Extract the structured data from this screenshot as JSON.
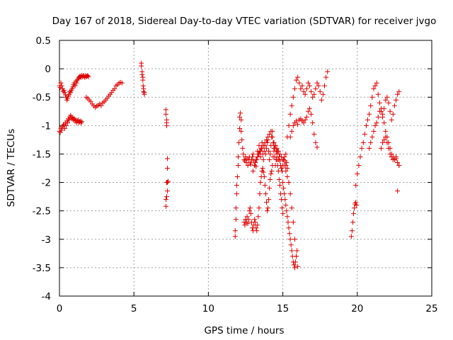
{
  "chart_data": {
    "type": "scatter",
    "title": "Day 167 of 2018, Sidereal Day-to-day VTEC variation (SDTVAR) for receiver jvgo",
    "xlabel": "GPS time / hours",
    "ylabel": "SDTVAR / TECUs",
    "xlim": [
      0,
      25
    ],
    "ylim": [
      -4,
      0.5
    ],
    "xticks": [
      0,
      5,
      10,
      15,
      20,
      25
    ],
    "yticks": [
      0.5,
      0,
      -0.5,
      -1,
      -1.5,
      -2,
      -2.5,
      -3,
      -3.5,
      -4
    ],
    "xtick_labels": [
      "0",
      "5",
      "10",
      "15",
      "20",
      "25"
    ],
    "ytick_labels": [
      "0.5",
      "0",
      "-0.5",
      "-1",
      "-1.5",
      "-2",
      "-2.5",
      "-3",
      "-3.5",
      "-4"
    ],
    "grid": true,
    "marker": "+",
    "color": "#e00000",
    "series": [
      {
        "name": "SDTVAR",
        "x": [
          0.0,
          0.05,
          0.1,
          0.15,
          0.2,
          0.25,
          0.3,
          0.35,
          0.4,
          0.45,
          0.5,
          0.55,
          0.6,
          0.65,
          0.7,
          0.75,
          0.8,
          0.85,
          0.9,
          0.95,
          1.0,
          1.05,
          1.1,
          1.15,
          1.2,
          1.25,
          1.3,
          1.35,
          1.4,
          1.45,
          1.5,
          1.55,
          1.6,
          1.65,
          1.7,
          1.75,
          1.8,
          1.85,
          1.9,
          1.95,
          0.0,
          0.05,
          0.1,
          0.15,
          0.2,
          0.25,
          0.3,
          0.35,
          0.4,
          0.45,
          0.5,
          0.55,
          0.6,
          0.65,
          0.7,
          0.75,
          0.8,
          0.85,
          0.9,
          0.95,
          1.0,
          1.05,
          1.1,
          1.15,
          1.2,
          1.25,
          1.3,
          1.35,
          1.4,
          1.45,
          1.5,
          1.8,
          1.9,
          2.0,
          2.1,
          2.2,
          2.3,
          2.4,
          2.5,
          2.6,
          2.7,
          2.8,
          2.9,
          3.0,
          3.1,
          3.2,
          3.3,
          3.4,
          3.5,
          3.6,
          3.7,
          3.8,
          3.9,
          4.0,
          4.1,
          4.2,
          5.5,
          5.5,
          5.55,
          5.55,
          5.6,
          5.6,
          5.62,
          5.65,
          5.65,
          5.7,
          5.7,
          7.15,
          7.15,
          7.2,
          7.2,
          7.2,
          7.25,
          7.25,
          7.3,
          7.2,
          7.25,
          7.2,
          7.15,
          7.15,
          7.25,
          11.8,
          11.8,
          11.85,
          11.85,
          11.9,
          11.9,
          11.95,
          12.0,
          12.0,
          12.05,
          12.1,
          12.1,
          12.15,
          12.2,
          12.2,
          12.25,
          12.3,
          12.35,
          12.4,
          12.45,
          12.5,
          12.55,
          12.6,
          12.65,
          12.7,
          12.75,
          12.8,
          12.85,
          12.9,
          12.95,
          13.0,
          13.05,
          13.1,
          13.15,
          13.2,
          13.25,
          13.3,
          13.35,
          13.4,
          13.45,
          13.5,
          13.55,
          13.6,
          13.65,
          13.7,
          13.75,
          13.8,
          13.85,
          13.9,
          13.95,
          14.0,
          14.05,
          14.1,
          14.15,
          14.2,
          14.25,
          14.3,
          14.35,
          14.4,
          14.45,
          14.5,
          14.55,
          14.6,
          14.65,
          14.7,
          14.75,
          14.8,
          14.85,
          14.9,
          14.95,
          15.0,
          15.05,
          15.1,
          15.15,
          15.2,
          15.25,
          15.3,
          12.4,
          12.45,
          12.5,
          12.55,
          12.6,
          12.65,
          12.7,
          12.75,
          12.8,
          12.85,
          12.9,
          12.95,
          13.0,
          13.05,
          13.1,
          13.15,
          13.2,
          13.25,
          13.3,
          13.35,
          13.4,
          13.45,
          13.5,
          13.55,
          13.6,
          13.65,
          13.7,
          13.75,
          13.8,
          13.85,
          13.9,
          13.95,
          14.0,
          14.05,
          14.1,
          14.15,
          14.2,
          14.25,
          14.3,
          14.35,
          14.4,
          14.45,
          14.5,
          14.55,
          14.6,
          14.65,
          14.7,
          14.75,
          14.8,
          14.85,
          14.9,
          14.95,
          15.0,
          13.0,
          13.1,
          13.2,
          13.3,
          13.4,
          13.5,
          13.6,
          13.7,
          13.8,
          13.9,
          14.0,
          14.1,
          14.2,
          14.3,
          14.4,
          14.5,
          14.6,
          14.7,
          14.8,
          14.9,
          15.0,
          15.1,
          15.2,
          15.3,
          15.4,
          15.5,
          15.6,
          15.7,
          15.8,
          15.9,
          16.0,
          15.0,
          15.05,
          15.1,
          15.15,
          15.2,
          15.25,
          15.3,
          15.35,
          15.4,
          15.45,
          15.5,
          15.55,
          15.6,
          15.65,
          15.7,
          15.75,
          15.8,
          15.85,
          15.9,
          15.95,
          15.2,
          15.3,
          15.4,
          15.5,
          15.6,
          15.7,
          15.8,
          15.9,
          16.0,
          16.1,
          16.2,
          16.3,
          16.4,
          16.5,
          16.6,
          16.7,
          16.8,
          16.9,
          17.0,
          17.1,
          17.2,
          17.3,
          17.4,
          17.5,
          17.6,
          17.7,
          17.8,
          17.9,
          18.0,
          15.5,
          15.6,
          15.7,
          15.8,
          15.9,
          16.0,
          16.1,
          16.2,
          16.3,
          16.4,
          16.5,
          16.6,
          16.7,
          16.8,
          16.9,
          17.0,
          17.1,
          17.2,
          17.3,
          19.6,
          19.65,
          19.7,
          19.75,
          19.8,
          19.85,
          19.9,
          19.95,
          19.9,
          20.0,
          20.1,
          20.2,
          20.3,
          20.4,
          20.5,
          20.6,
          20.7,
          20.8,
          20.9,
          21.0,
          21.1,
          21.2,
          21.3,
          21.4,
          21.5,
          21.6,
          21.7,
          21.8,
          21.9,
          22.0,
          22.1,
          22.2,
          22.3,
          22.4,
          22.5,
          22.6,
          22.7,
          22.8,
          20.8,
          20.9,
          21.0,
          21.1,
          21.2,
          21.3,
          21.4,
          21.5,
          21.6,
          21.7,
          21.8,
          21.9,
          22.0,
          22.1,
          22.2,
          22.3,
          22.4,
          22.5,
          22.6,
          22.7,
          22.8,
          21.6,
          21.7,
          21.8,
          21.9,
          22.0,
          22.1,
          22.2,
          22.3,
          22.4,
          22.5,
          22.6,
          22.7,
          22.8,
          22.7
        ],
        "y": [
          -0.3,
          -0.33,
          -0.25,
          -0.3,
          -0.35,
          -0.4,
          -0.38,
          -0.42,
          -0.46,
          -0.5,
          -0.55,
          -0.52,
          -0.48,
          -0.45,
          -0.4,
          -0.42,
          -0.38,
          -0.35,
          -0.32,
          -0.28,
          -0.25,
          -0.3,
          -0.22,
          -0.25,
          -0.2,
          -0.18,
          -0.15,
          -0.14,
          -0.13,
          -0.15,
          -0.12,
          -0.14,
          -0.12,
          -0.13,
          -0.15,
          -0.12,
          -0.14,
          -0.13,
          -0.12,
          -0.14,
          -1.1,
          -1.12,
          -1.05,
          -1.08,
          -1.02,
          -1.0,
          -0.98,
          -1.05,
          -0.95,
          -1.0,
          -0.92,
          -0.95,
          -0.88,
          -0.9,
          -0.85,
          -0.82,
          -0.85,
          -0.88,
          -0.86,
          -0.9,
          -0.88,
          -0.92,
          -0.9,
          -0.95,
          -0.92,
          -0.9,
          -0.95,
          -0.93,
          -0.92,
          -0.95,
          -0.93,
          -0.5,
          -0.52,
          -0.55,
          -0.58,
          -0.62,
          -0.65,
          -0.68,
          -0.66,
          -0.64,
          -0.62,
          -0.65,
          -0.6,
          -0.58,
          -0.55,
          -0.52,
          -0.48,
          -0.45,
          -0.42,
          -0.38,
          -0.35,
          -0.3,
          -0.28,
          -0.25,
          -0.24,
          -0.25,
          0.1,
          0.05,
          -0.05,
          -0.1,
          -0.15,
          -0.2,
          -0.3,
          -0.35,
          -0.4,
          -0.42,
          -0.45,
          -0.72,
          -0.8,
          -0.9,
          -0.95,
          -1.0,
          -1.58,
          -1.75,
          -1.98,
          -2.0,
          -2.15,
          -2.25,
          -2.3,
          -2.42,
          -2.0,
          -2.95,
          -2.85,
          -2.65,
          -2.45,
          -2.2,
          -2.05,
          -1.9,
          -1.7,
          -1.55,
          -1.3,
          -1.05,
          -0.85,
          -0.78,
          -0.9,
          -1.1,
          -1.25,
          -1.4,
          -1.5,
          -1.6,
          -1.62,
          -1.55,
          -1.65,
          -1.58,
          -1.7,
          -1.6,
          -1.55,
          -1.65,
          -1.68,
          -1.6,
          -1.55,
          -1.5,
          -1.62,
          -1.7,
          -1.65,
          -1.72,
          -1.6,
          -1.45,
          -1.5,
          -1.35,
          -1.45,
          -1.55,
          -1.4,
          -1.3,
          -1.5,
          -1.6,
          -1.45,
          -1.35,
          -1.5,
          -1.4,
          -1.3,
          -1.25,
          -1.45,
          -1.6,
          -1.5,
          -1.35,
          -1.2,
          -1.1,
          -1.3,
          -1.4,
          -1.55,
          -1.7,
          -1.6,
          -1.5,
          -1.45,
          -1.6,
          -1.55,
          -1.62,
          -1.7,
          -1.75,
          -1.8,
          -1.7,
          -1.6,
          -1.55,
          -1.62,
          -1.7,
          -1.65,
          -1.75,
          -2.7,
          -2.75,
          -2.65,
          -2.7,
          -2.6,
          -2.72,
          -2.65,
          -2.5,
          -2.45,
          -2.55,
          -2.7,
          -2.8,
          -2.85,
          -2.75,
          -2.65,
          -2.7,
          -2.8,
          -2.85,
          -2.75,
          -2.6,
          -2.45,
          -2.2,
          -2.0,
          -1.9,
          -1.8,
          -1.75,
          -1.82,
          -1.9,
          -2.05,
          -2.2,
          -2.35,
          -2.5,
          -2.45,
          -2.3,
          -2.1,
          -1.95,
          -1.85,
          -1.8,
          -1.7,
          -1.55,
          -1.45,
          -1.4,
          -1.35,
          -1.45,
          -1.6,
          -1.7,
          -1.8,
          -1.95,
          -2.05,
          -2.2,
          -2.3,
          -2.45,
          -2.55,
          -1.8,
          -1.7,
          -1.6,
          -1.55,
          -1.5,
          -1.45,
          -1.4,
          -1.35,
          -1.3,
          -1.25,
          -1.2,
          -1.15,
          -1.1,
          -1.2,
          -1.3,
          -1.35,
          -1.4,
          -1.45,
          -1.5,
          -1.55,
          -1.6,
          -1.7,
          -1.8,
          -1.9,
          -2.0,
          -2.2,
          -2.45,
          -2.7,
          -3.0,
          -3.3,
          -3.48,
          -2.0,
          -2.1,
          -2.2,
          -2.3,
          -2.4,
          -2.5,
          -2.6,
          -2.7,
          -2.8,
          -2.9,
          -3.0,
          -3.1,
          -3.2,
          -3.3,
          -3.4,
          -3.45,
          -3.5,
          -3.4,
          -3.3,
          -3.2,
          -1.5,
          -1.2,
          -1.0,
          -0.8,
          -0.65,
          -0.5,
          -0.35,
          -0.2,
          -0.15,
          -0.25,
          -0.35,
          -0.3,
          -0.4,
          -0.45,
          -0.35,
          -0.25,
          -0.3,
          -0.4,
          -0.5,
          -0.45,
          -0.35,
          -0.25,
          -0.3,
          -0.4,
          -0.55,
          -0.45,
          -0.3,
          -0.15,
          -0.05,
          -1.2,
          -1.1,
          -1.0,
          -0.95,
          -0.92,
          -0.98,
          -0.9,
          -0.88,
          -0.92,
          -0.95,
          -0.9,
          -0.85,
          -0.75,
          -0.7,
          -0.8,
          -0.95,
          -1.15,
          -1.3,
          -1.38,
          -2.95,
          -2.85,
          -2.7,
          -2.55,
          -2.45,
          -2.38,
          -2.35,
          -2.4,
          -2.05,
          -1.85,
          -1.7,
          -1.55,
          -1.4,
          -1.3,
          -1.15,
          -1.0,
          -0.9,
          -0.8,
          -0.65,
          -0.5,
          -0.35,
          -0.3,
          -0.25,
          -0.45,
          -0.6,
          -0.75,
          -0.85,
          -0.7,
          -0.55,
          -0.5,
          -0.6,
          -0.75,
          -0.9,
          -0.8,
          -0.65,
          -0.55,
          -0.45,
          -0.4,
          -1.4,
          -1.3,
          -1.2,
          -1.1,
          -1.0,
          -0.95,
          -0.85,
          -0.75,
          -0.7,
          -0.8,
          -0.95,
          -1.1,
          -1.2,
          -1.3,
          -1.4,
          -1.5,
          -1.55,
          -1.6,
          -1.58,
          -1.65,
          -1.7,
          -1.4,
          -1.3,
          -1.25,
          -1.2,
          -1.3,
          -1.4,
          -1.5,
          -1.55,
          -1.6,
          -1.58,
          -1.55,
          -1.65,
          -1.7,
          -2.15
        ]
      }
    ]
  }
}
